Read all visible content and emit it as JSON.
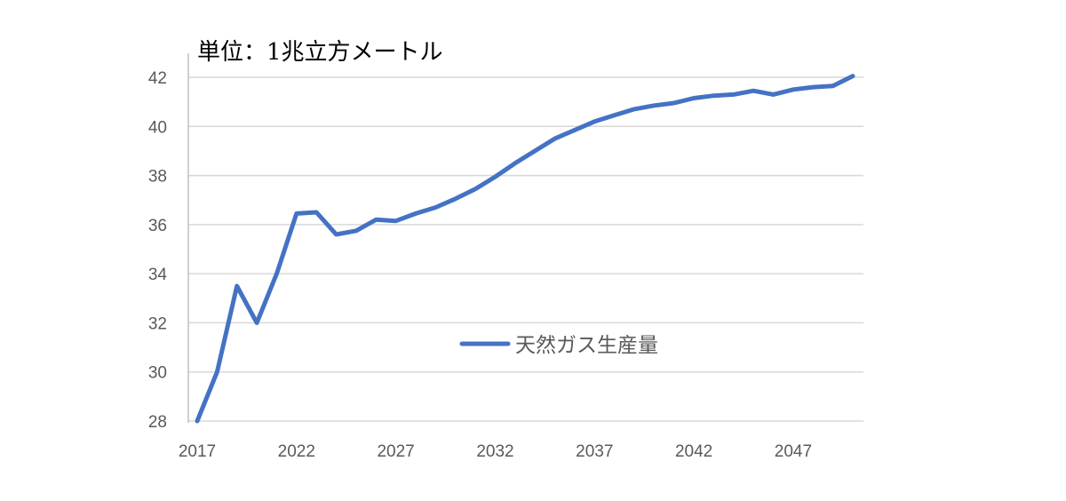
{
  "chart_data": {
    "type": "line",
    "unit_label": "単位：1兆立方メートル",
    "x": [
      2017,
      2018,
      2019,
      2020,
      2021,
      2022,
      2023,
      2024,
      2025,
      2026,
      2027,
      2028,
      2029,
      2030,
      2031,
      2032,
      2033,
      2034,
      2035,
      2036,
      2037,
      2038,
      2039,
      2040,
      2041,
      2042,
      2043,
      2044,
      2045,
      2046,
      2047,
      2048,
      2049,
      2050
    ],
    "x_tick_labels": [
      "2017",
      "2022",
      "2027",
      "2032",
      "2037",
      "2042",
      "2047"
    ],
    "y_tick_labels": [
      "28",
      "30",
      "32",
      "34",
      "36",
      "38",
      "40",
      "42"
    ],
    "ylim": [
      28,
      42
    ],
    "xlim": [
      2017,
      2050
    ],
    "grid": true,
    "legend_position": "center",
    "series": [
      {
        "name": "天然ガス生産量",
        "color": "#4472c4",
        "values": [
          28.0,
          30.0,
          33.5,
          32.0,
          34.0,
          36.45,
          36.5,
          35.6,
          35.75,
          36.2,
          36.15,
          36.45,
          36.7,
          37.05,
          37.45,
          37.95,
          38.5,
          39.0,
          39.5,
          39.85,
          40.2,
          40.45,
          40.7,
          40.85,
          40.95,
          41.15,
          41.25,
          41.3,
          41.45,
          41.3,
          41.5,
          41.6,
          41.65,
          42.05
        ]
      }
    ]
  }
}
